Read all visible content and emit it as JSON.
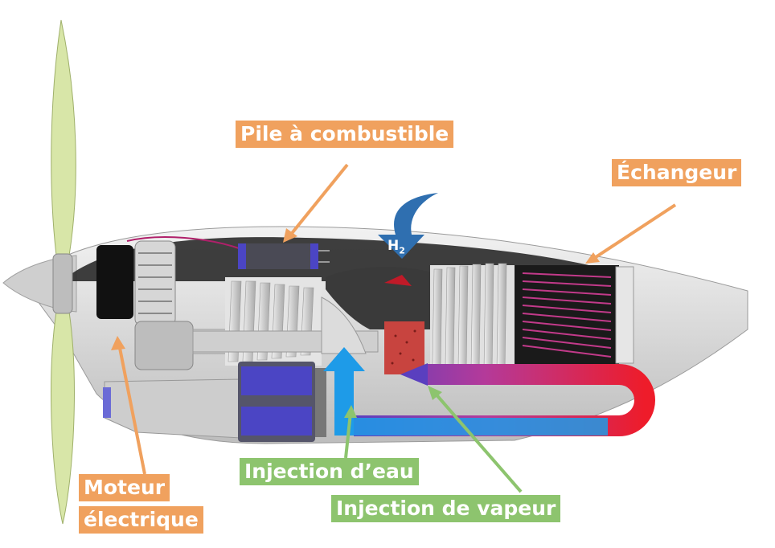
{
  "labels": {
    "fuel_cell": "Pile à combustible",
    "exchanger": "Échangeur",
    "motor_line1": "Moteur",
    "motor_line2": "électrique",
    "water_injection": "Injection d’eau",
    "steam_injection": "Injection de vapeur",
    "h2": "H",
    "h2_sub": "2"
  },
  "colors": {
    "label_orange": "#f0a15e",
    "label_green": "#8dc46e",
    "h2_arrow_blue": "#2f6fb0",
    "water_blue": "#1e9be8",
    "steam_red": "#ee1c2a",
    "steam_purple": "#5a3fbf",
    "exchanger_magenta": "#c23a8a",
    "propeller": "#d8e6a8"
  },
  "icons": [
    "propeller-icon",
    "h2-arrow-icon"
  ]
}
